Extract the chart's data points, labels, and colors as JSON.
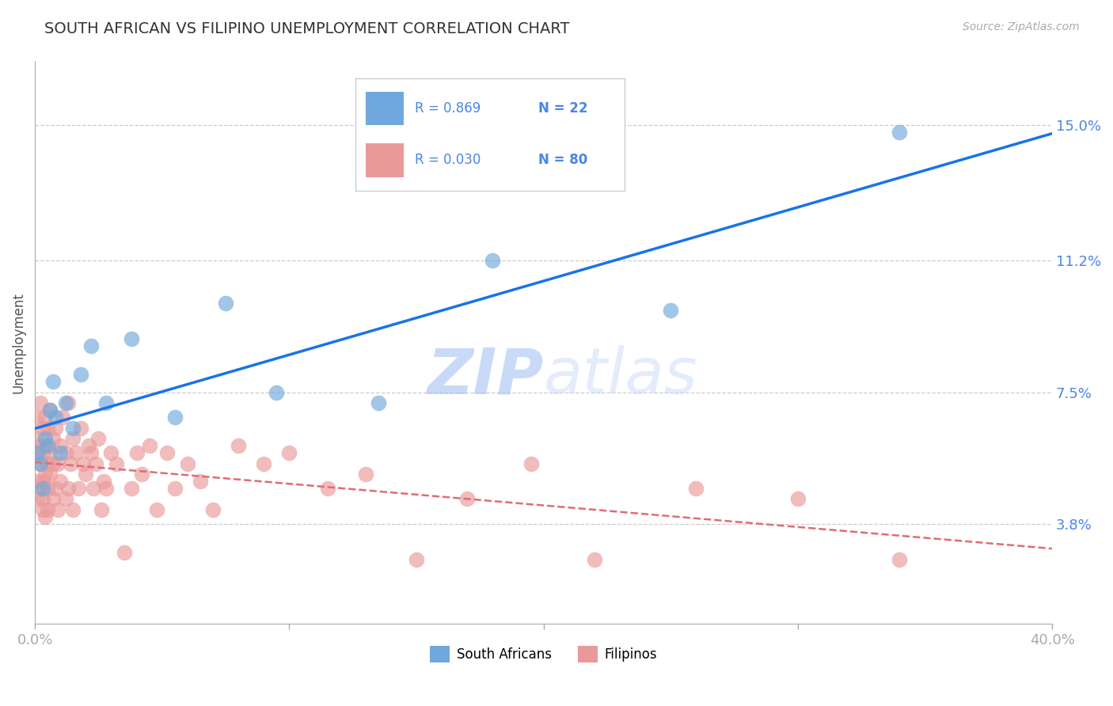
{
  "title": "SOUTH AFRICAN VS FILIPINO UNEMPLOYMENT CORRELATION CHART",
  "source": "Source: ZipAtlas.com",
  "ylabel": "Unemployment",
  "yticks": [
    0.038,
    0.075,
    0.112,
    0.15
  ],
  "ytick_labels": [
    "3.8%",
    "7.5%",
    "11.2%",
    "15.0%"
  ],
  "xmin": 0.0,
  "xmax": 0.4,
  "ymin": 0.01,
  "ymax": 0.168,
  "blue_color": "#6fa8dc",
  "pink_color": "#ea9999",
  "blue_line_color": "#1a73e8",
  "pink_line_color": "#e06c75",
  "legend_text_color": "#4a86e8",
  "legend_blue_R": "R = 0.869",
  "legend_blue_N": "N = 22",
  "legend_pink_R": "R = 0.030",
  "legend_pink_N": "N = 80",
  "watermark_zip": "ZIP",
  "watermark_atlas": "atlas",
  "sa_x": [
    0.001,
    0.002,
    0.003,
    0.004,
    0.005,
    0.006,
    0.007,
    0.008,
    0.01,
    0.012,
    0.015,
    0.018,
    0.022,
    0.028,
    0.038,
    0.055,
    0.075,
    0.095,
    0.135,
    0.18,
    0.25,
    0.34
  ],
  "sa_y": [
    0.058,
    0.055,
    0.048,
    0.062,
    0.06,
    0.07,
    0.078,
    0.068,
    0.058,
    0.072,
    0.065,
    0.08,
    0.088,
    0.072,
    0.09,
    0.068,
    0.1,
    0.075,
    0.072,
    0.112,
    0.098,
    0.148
  ],
  "fil_x": [
    0.001,
    0.001,
    0.001,
    0.001,
    0.001,
    0.002,
    0.002,
    0.002,
    0.002,
    0.003,
    0.003,
    0.003,
    0.003,
    0.003,
    0.004,
    0.004,
    0.004,
    0.004,
    0.005,
    0.005,
    0.005,
    0.005,
    0.006,
    0.006,
    0.006,
    0.007,
    0.007,
    0.007,
    0.008,
    0.008,
    0.009,
    0.009,
    0.01,
    0.01,
    0.011,
    0.012,
    0.012,
    0.013,
    0.013,
    0.014,
    0.015,
    0.015,
    0.016,
    0.017,
    0.018,
    0.019,
    0.02,
    0.021,
    0.022,
    0.023,
    0.024,
    0.025,
    0.026,
    0.027,
    0.028,
    0.03,
    0.032,
    0.035,
    0.038,
    0.04,
    0.042,
    0.045,
    0.048,
    0.052,
    0.055,
    0.06,
    0.065,
    0.07,
    0.08,
    0.09,
    0.1,
    0.115,
    0.13,
    0.15,
    0.17,
    0.195,
    0.22,
    0.26,
    0.3,
    0.34
  ],
  "fil_y": [
    0.058,
    0.062,
    0.05,
    0.068,
    0.045,
    0.055,
    0.06,
    0.048,
    0.072,
    0.042,
    0.058,
    0.065,
    0.05,
    0.045,
    0.06,
    0.052,
    0.068,
    0.04,
    0.055,
    0.048,
    0.065,
    0.042,
    0.058,
    0.052,
    0.07,
    0.045,
    0.062,
    0.055,
    0.048,
    0.065,
    0.055,
    0.042,
    0.06,
    0.05,
    0.068,
    0.058,
    0.045,
    0.072,
    0.048,
    0.055,
    0.062,
    0.042,
    0.058,
    0.048,
    0.065,
    0.055,
    0.052,
    0.06,
    0.058,
    0.048,
    0.055,
    0.062,
    0.042,
    0.05,
    0.048,
    0.058,
    0.055,
    0.03,
    0.048,
    0.058,
    0.052,
    0.06,
    0.042,
    0.058,
    0.048,
    0.055,
    0.05,
    0.042,
    0.06,
    0.055,
    0.058,
    0.048,
    0.052,
    0.028,
    0.045,
    0.055,
    0.028,
    0.048,
    0.045,
    0.028
  ]
}
